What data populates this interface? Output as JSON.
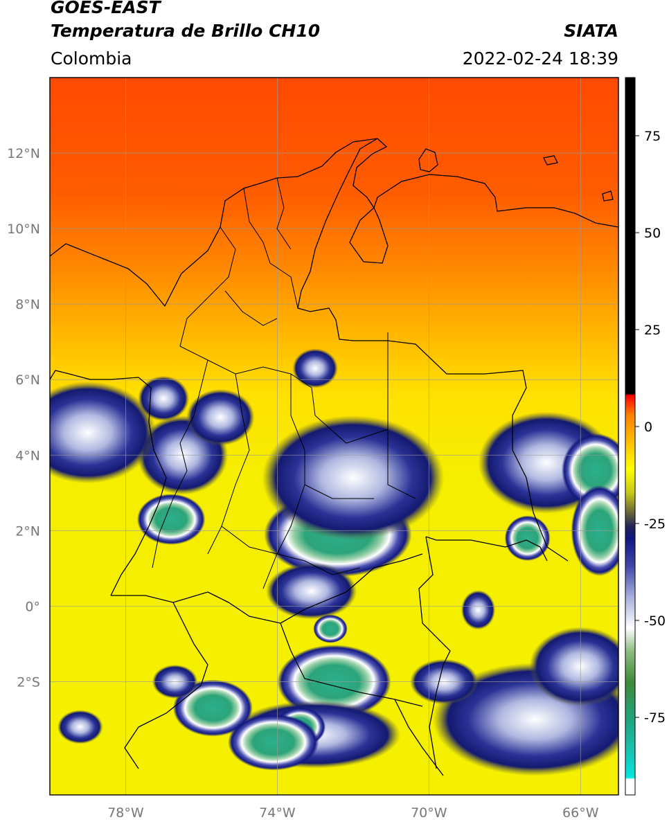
{
  "header": {
    "satellite": "GOES-EAST",
    "product": "Temperatura de Brillo CH10",
    "brand": "SIATA",
    "region": "Colombia",
    "timestamp": "2022-02-24 18:39"
  },
  "map": {
    "lon_range": [
      -80,
      -65
    ],
    "lat_range": [
      -5,
      14
    ],
    "lon_ticks": [
      {
        "value": -78,
        "label": "78°W"
      },
      {
        "value": -74,
        "label": "74°W"
      },
      {
        "value": -70,
        "label": "70°W"
      },
      {
        "value": -66,
        "label": "66°W"
      }
    ],
    "lat_ticks": [
      {
        "value": 12,
        "label": "12°N"
      },
      {
        "value": 10,
        "label": "10°N"
      },
      {
        "value": 8,
        "label": "8°N"
      },
      {
        "value": 6,
        "label": "6°N"
      },
      {
        "value": 4,
        "label": "4°N"
      },
      {
        "value": 2,
        "label": "2°N"
      },
      {
        "value": 0,
        "label": "0°"
      },
      {
        "value": -2,
        "label": "2°S"
      }
    ],
    "grid": true,
    "cloud_cells": [
      {
        "lon": -72.4,
        "lat": 1.9,
        "rx": 1.3,
        "ry": 0.75,
        "core": true
      },
      {
        "lon": -72.0,
        "lat": 3.4,
        "rx": 1.6,
        "ry": 1.1,
        "core": false
      },
      {
        "lon": -73.1,
        "lat": 0.4,
        "rx": 0.8,
        "ry": 0.5,
        "core": false
      },
      {
        "lon": -72.6,
        "lat": -0.6,
        "rx": 0.3,
        "ry": 0.25,
        "core": true
      },
      {
        "lon": -72.5,
        "lat": -2.0,
        "rx": 1.0,
        "ry": 0.65,
        "core": true
      },
      {
        "lon": -73.0,
        "lat": -3.4,
        "rx": 1.5,
        "ry": 0.6,
        "core": false
      },
      {
        "lon": -73.4,
        "lat": -3.2,
        "rx": 0.45,
        "ry": 0.35,
        "core": true
      },
      {
        "lon": -76.8,
        "lat": 2.3,
        "rx": 0.6,
        "ry": 0.45,
        "core": true
      },
      {
        "lon": -76.5,
        "lat": 4.0,
        "rx": 0.8,
        "ry": 0.7,
        "core": false
      },
      {
        "lon": -75.5,
        "lat": 5.0,
        "rx": 0.6,
        "ry": 0.5,
        "core": false
      },
      {
        "lon": -79.0,
        "lat": 4.6,
        "rx": 1.2,
        "ry": 0.9,
        "core": false
      },
      {
        "lon": -77.0,
        "lat": 5.5,
        "rx": 0.45,
        "ry": 0.4,
        "core": false
      },
      {
        "lon": -73.0,
        "lat": 6.3,
        "rx": 0.4,
        "ry": 0.35,
        "core": false
      },
      {
        "lon": -75.7,
        "lat": -2.7,
        "rx": 0.7,
        "ry": 0.5,
        "core": true
      },
      {
        "lon": -76.7,
        "lat": -2.0,
        "rx": 0.4,
        "ry": 0.3,
        "core": false
      },
      {
        "lon": -74.1,
        "lat": -3.6,
        "rx": 0.8,
        "ry": 0.5,
        "core": true
      },
      {
        "lon": -66.9,
        "lat": 3.8,
        "rx": 1.2,
        "ry": 0.9,
        "core": false
      },
      {
        "lon": -65.6,
        "lat": 3.6,
        "rx": 0.6,
        "ry": 0.65,
        "core": true
      },
      {
        "lon": -65.5,
        "lat": 2.0,
        "rx": 0.5,
        "ry": 0.8,
        "core": true
      },
      {
        "lon": -67.4,
        "lat": 1.8,
        "rx": 0.4,
        "ry": 0.4,
        "core": true
      },
      {
        "lon": -67.2,
        "lat": -3.0,
        "rx": 1.8,
        "ry": 1.0,
        "core": false
      },
      {
        "lon": -66.0,
        "lat": -1.6,
        "rx": 0.9,
        "ry": 0.7,
        "core": false
      },
      {
        "lon": -69.6,
        "lat": -2.0,
        "rx": 0.6,
        "ry": 0.4,
        "core": false
      },
      {
        "lon": -68.7,
        "lat": -0.1,
        "rx": 0.3,
        "ry": 0.35,
        "core": false
      },
      {
        "lon": -79.2,
        "lat": -3.2,
        "rx": 0.4,
        "ry": 0.3,
        "core": false
      }
    ]
  },
  "colorbar": {
    "range": [
      -95,
      90
    ],
    "ticks": [
      {
        "value": 75,
        "label": "75"
      },
      {
        "value": 50,
        "label": "50"
      },
      {
        "value": 25,
        "label": "25"
      },
      {
        "value": 0,
        "label": "0"
      },
      {
        "value": -25,
        "label": "-25"
      },
      {
        "value": -50,
        "label": "-50"
      },
      {
        "value": -75,
        "label": "-75"
      }
    ],
    "stops": [
      {
        "value": -95,
        "color": "#ffffff"
      },
      {
        "value": -91,
        "color": "#ffffff"
      },
      {
        "value": -90.5,
        "color": "#00e8e0"
      },
      {
        "value": -85,
        "color": "#16c8b8"
      },
      {
        "value": -75,
        "color": "#22a27a"
      },
      {
        "value": -66,
        "color": "#3f8a3a"
      },
      {
        "value": -58,
        "color": "#8cbc80"
      },
      {
        "value": -52,
        "color": "#ffffff"
      },
      {
        "value": -44,
        "color": "#a8b0dc"
      },
      {
        "value": -36,
        "color": "#4248a8"
      },
      {
        "value": -29,
        "color": "#101880"
      },
      {
        "value": -26,
        "color": "#20205a"
      },
      {
        "value": -22,
        "color": "#6a6a3a"
      },
      {
        "value": -17,
        "color": "#c8c818"
      },
      {
        "value": -11,
        "color": "#ffff00"
      },
      {
        "value": -4,
        "color": "#ffbf00"
      },
      {
        "value": 3,
        "color": "#ff8000"
      },
      {
        "value": 8,
        "color": "#ff0000"
      },
      {
        "value": 8.5,
        "color": "#000000"
      },
      {
        "value": 90,
        "color": "#000000"
      }
    ]
  }
}
